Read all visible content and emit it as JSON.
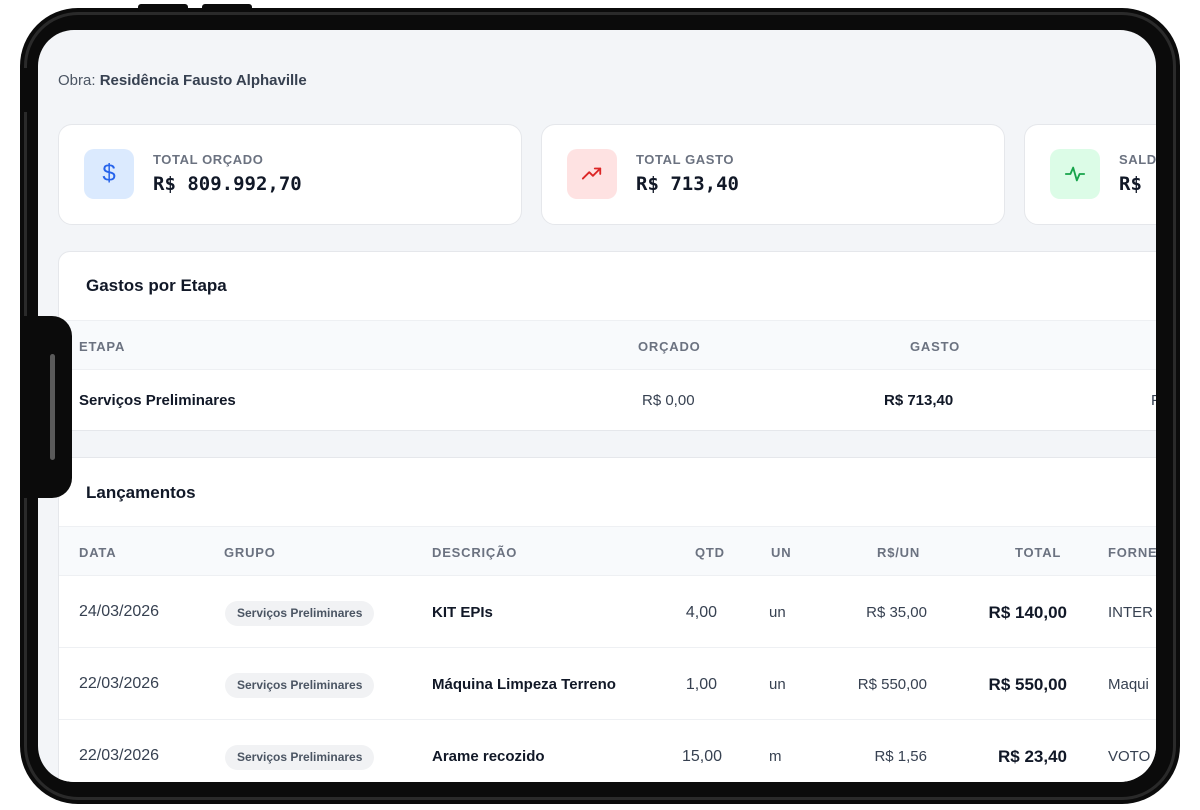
{
  "header": {
    "obra_label": "Obra:",
    "obra_name": "Residência Fausto Alphaville"
  },
  "cards": [
    {
      "label": "TOTAL ORÇADO",
      "value": "R$ 809.992,70",
      "icon": "dollar-icon",
      "icon_color": "#2563eb",
      "icon_bg": "#dbeafe"
    },
    {
      "label": "TOTAL GASTO",
      "value": "R$ 713,40",
      "icon": "trending-up-icon",
      "icon_color": "#dc2626",
      "icon_bg": "#fee2e2"
    },
    {
      "label": "SALD",
      "value": "R$",
      "icon": "activity-icon",
      "icon_color": "#16a34a",
      "icon_bg": "#dcfce7"
    }
  ],
  "gastos": {
    "title": "Gastos por Etapa",
    "columns": [
      "ETAPA",
      "ORÇADO",
      "GASTO"
    ],
    "rows": [
      {
        "etapa": "Serviços Preliminares",
        "orcado": "R$ 0,00",
        "gasto": "R$ 713,40",
        "extra": "F"
      }
    ]
  },
  "lancamentos": {
    "title": "Lançamentos",
    "columns": [
      "DATA",
      "GRUPO",
      "DESCRIÇÃO",
      "QTD",
      "UN",
      "R$/UN",
      "TOTAL",
      "FORNE"
    ],
    "rows": [
      {
        "data": "24/03/2026",
        "grupo": "Serviços Preliminares",
        "descricao": "KIT EPIs",
        "qtd": "4,00",
        "un": "un",
        "rs_un": "R$ 35,00",
        "total": "R$ 140,00",
        "fornecedor": "INTER"
      },
      {
        "data": "22/03/2026",
        "grupo": "Serviços Preliminares",
        "descricao": "Máquina Limpeza Terreno",
        "qtd": "1,00",
        "un": "un",
        "rs_un": "R$ 550,00",
        "total": "R$ 550,00",
        "fornecedor": "Maqui"
      },
      {
        "data": "22/03/2026",
        "grupo": "Serviços Preliminares",
        "descricao": "Arame recozido",
        "qtd": "15,00",
        "un": "m",
        "rs_un": "R$ 1,56",
        "total": "R$ 23,40",
        "fornecedor": "VOTO"
      }
    ]
  }
}
